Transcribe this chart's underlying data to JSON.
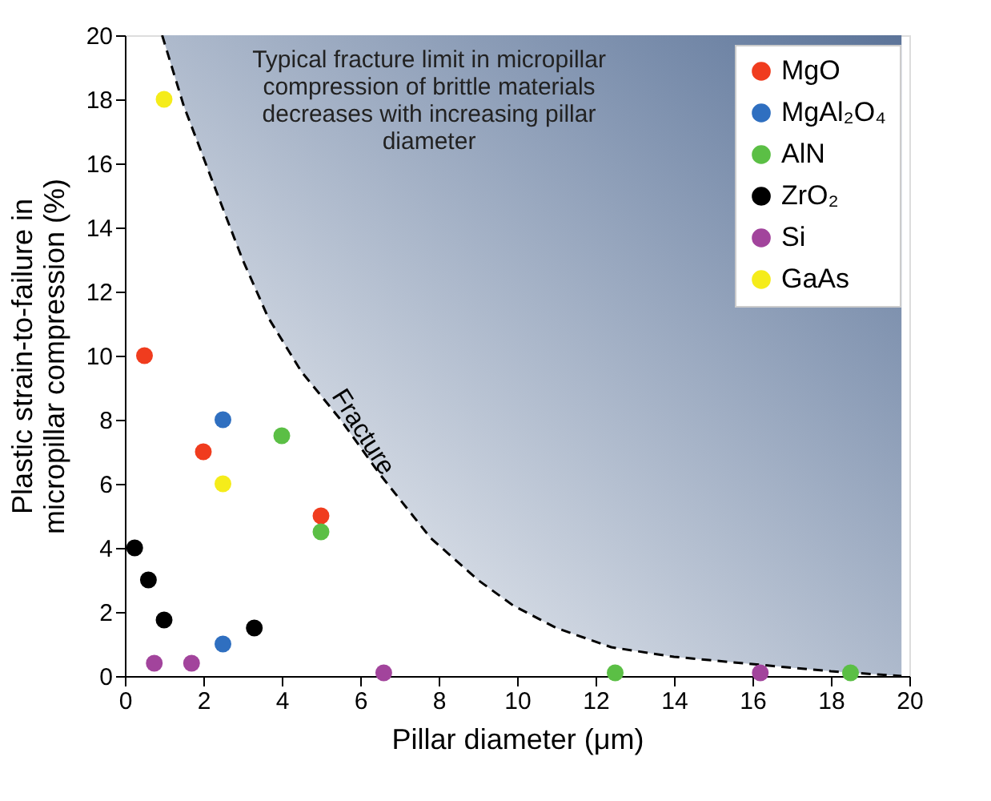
{
  "chart_data": {
    "type": "scatter",
    "xlabel": "Pillar diameter (μm)",
    "ylabel": "Plastic strain-to-failure in\nmicropillar compression (%)",
    "xlim": [
      0,
      20
    ],
    "ylim": [
      0,
      20
    ],
    "xticks": [
      0,
      2,
      4,
      6,
      8,
      10,
      12,
      14,
      16,
      18,
      20
    ],
    "yticks": [
      0,
      2,
      4,
      6,
      8,
      10,
      12,
      14,
      16,
      18,
      20
    ],
    "grid": false,
    "legend": "top right",
    "marker": "circle",
    "annotations": [
      "Typical fracture limit in micropillar\ncompression of brittle materials\ndecreases with increasing pillar\ndiameter"
    ],
    "series": [
      {
        "name": "MgO",
        "color": "#f03c1e",
        "x": [
          0.5,
          2,
          5
        ],
        "values": [
          10,
          7,
          5
        ]
      },
      {
        "name": "MgAl₂O₄",
        "color": "#2f6fc0",
        "x": [
          2.5,
          2.5
        ],
        "values": [
          8,
          1
        ]
      },
      {
        "name": "AlN",
        "color": "#5bbf45",
        "x": [
          4,
          5,
          12.5,
          18.5
        ],
        "values": [
          7.5,
          4.5,
          0.1,
          0.1
        ]
      },
      {
        "name": "ZrO₂",
        "color": "#000000",
        "x": [
          0.25,
          0.6,
          1,
          3.3
        ],
        "values": [
          4,
          3,
          1.75,
          1.5
        ]
      },
      {
        "name": "Si",
        "color": "#a2449c",
        "x": [
          0.75,
          1.7,
          6.6,
          16.2
        ],
        "values": [
          0.4,
          0.4,
          0.1,
          0.1
        ]
      },
      {
        "name": "GaAs",
        "color": "#f5ec1a",
        "x": [
          1,
          2.5
        ],
        "values": [
          18,
          6
        ]
      },
      {
        "name": "Fracture",
        "type": "line",
        "line_style": "dashed",
        "marker": "none",
        "color": "#000000",
        "x": [
          0.95,
          1.5,
          2.34,
          3,
          3.65,
          4.5,
          5.5,
          6.5,
          7.8,
          9,
          9.9,
          11,
          12.4,
          14,
          16.2,
          18,
          19.8
        ],
        "values": [
          20,
          17.8,
          15.1,
          13,
          11.2,
          9.5,
          8,
          6.3,
          4.3,
          3,
          2.2,
          1.5,
          0.9,
          0.6,
          0.35,
          0.15,
          0
        ]
      }
    ]
  }
}
